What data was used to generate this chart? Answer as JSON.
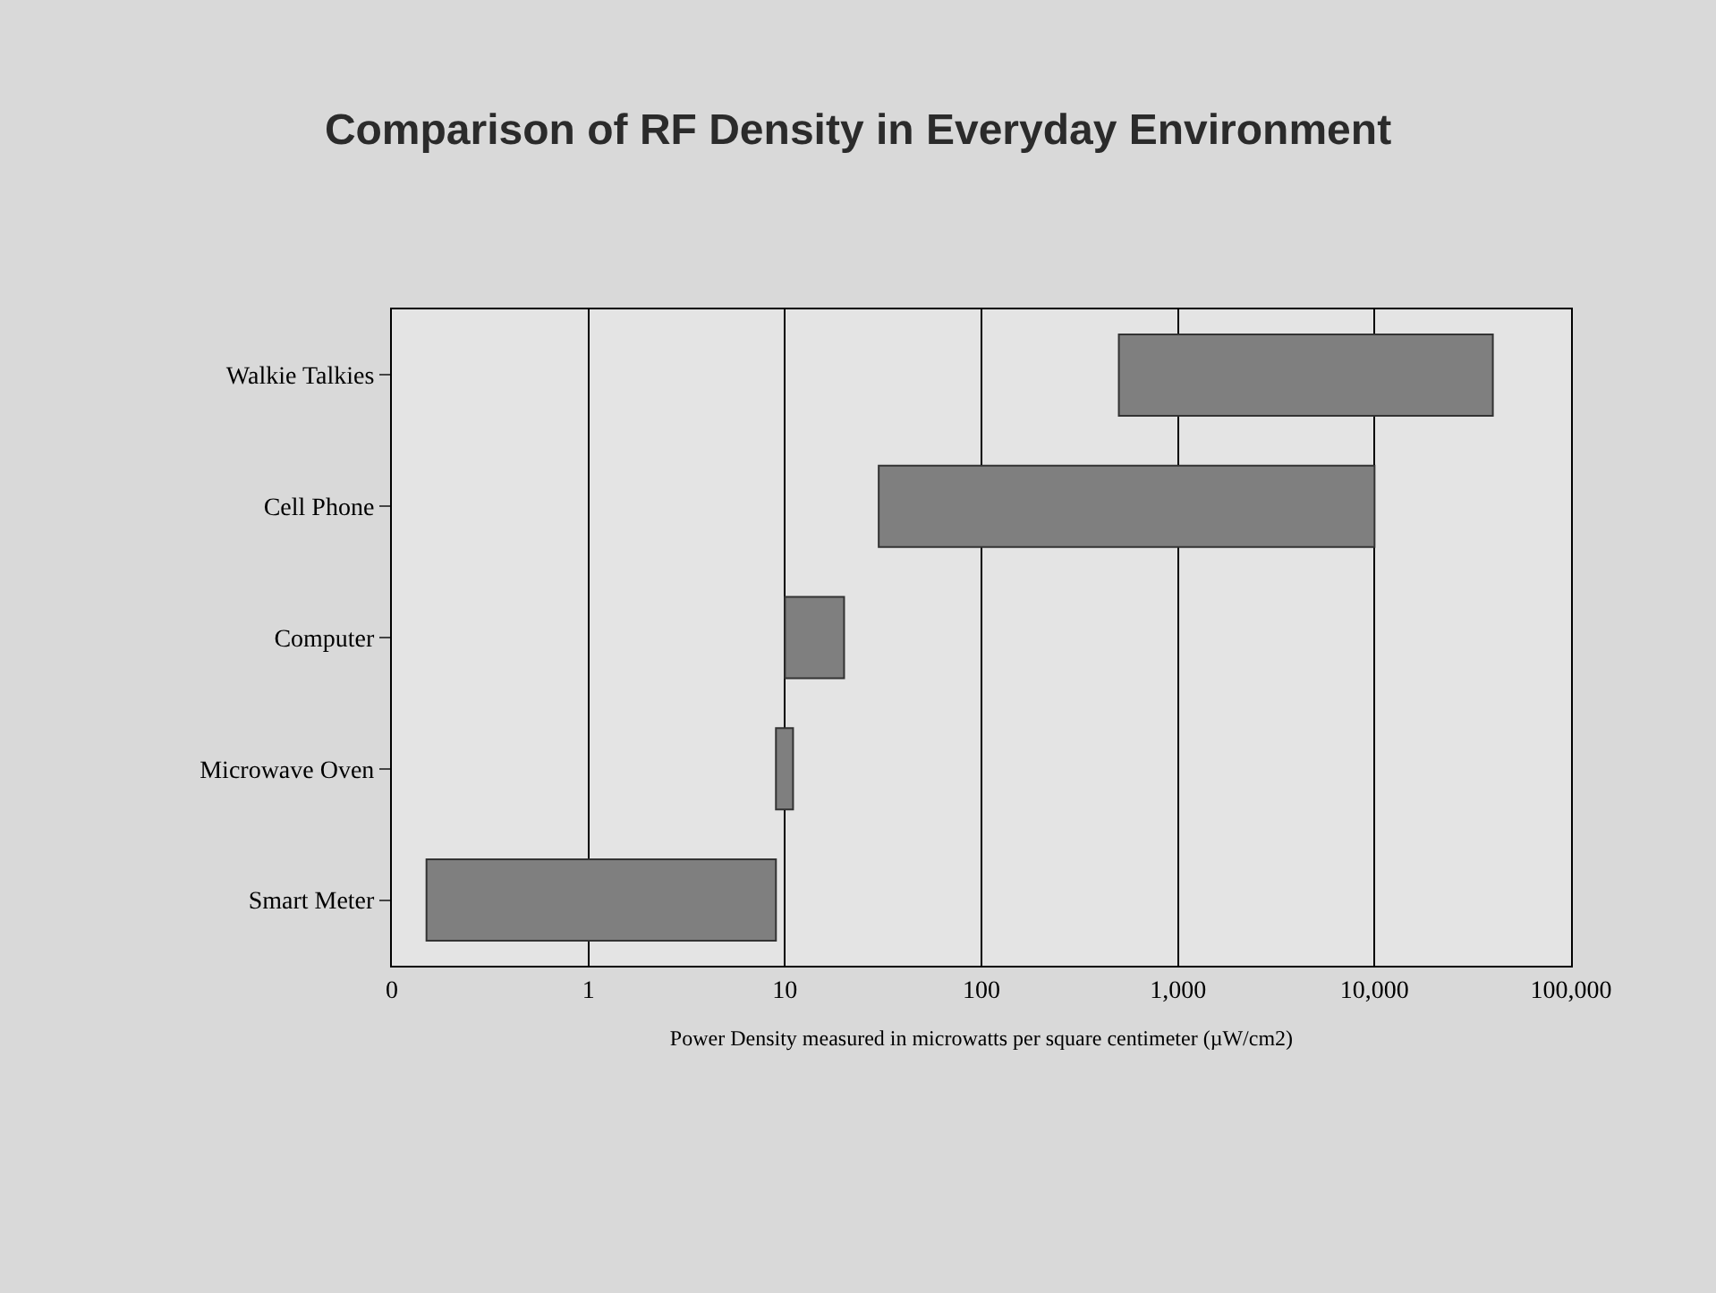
{
  "chart_data": {
    "type": "bar",
    "orientation": "horizontal",
    "title": "Comparison of RF Density in Everyday Environment",
    "xlabel": "Power Density measured in microwatts per square centimeter (µW/cm2)",
    "categories": [
      "Walkie Talkies",
      "Cell Phone",
      "Computer",
      "Microwave Oven",
      "Smart Meter"
    ],
    "base": [
      500,
      30,
      10,
      9,
      0.15
    ],
    "values": [
      39500,
      9970,
      10,
      2,
      8.85
    ],
    "color": "#7f7f7f",
    "log": "x",
    "xlim": [
      0.1,
      100000
    ],
    "xticks": [
      {
        "value": 0.1,
        "label": "0"
      },
      1,
      10,
      100,
      {
        "value": 1000,
        "label": "1,000"
      },
      {
        "value": 10000,
        "label": "10,000"
      },
      {
        "value": 100000,
        "label": "100,000"
      }
    ],
    "grid": "x",
    "legend": false
  }
}
